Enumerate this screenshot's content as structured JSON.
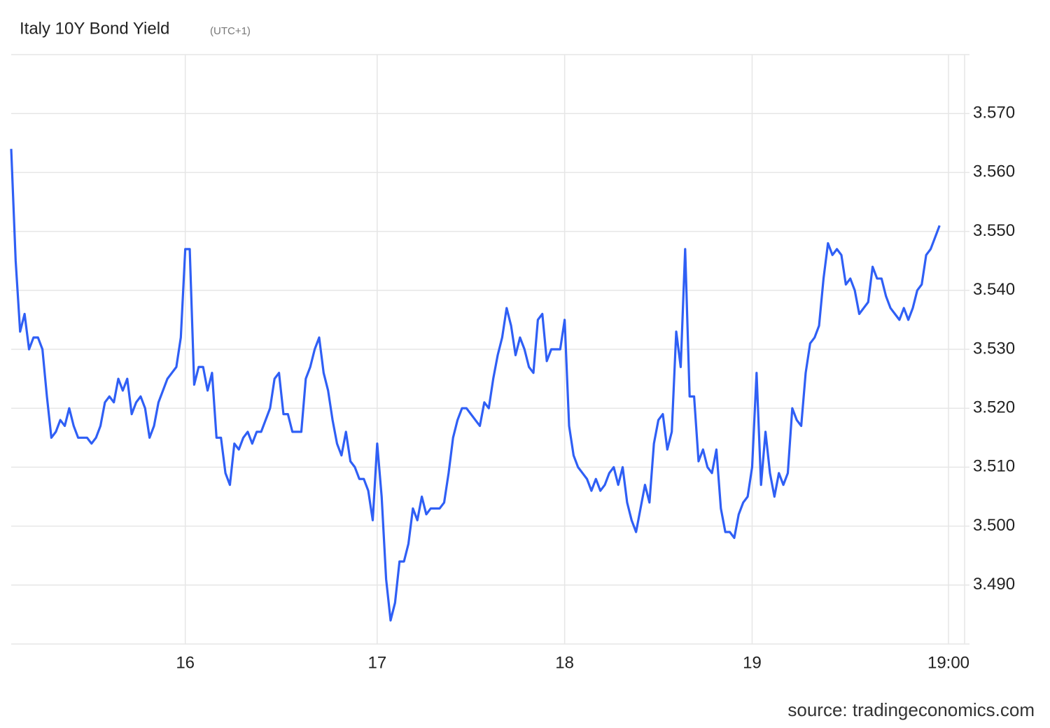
{
  "chart_data": {
    "type": "line",
    "title": "Italy 10Y Bond Yield",
    "subtitle": "(UTC+1)",
    "source": "source: tradingeconomics.com",
    "color": "#2f5ff5",
    "grid": true,
    "ylim": [
      3.48,
      3.58
    ],
    "yticks": [
      {
        "value": 3.49,
        "label": "3.490"
      },
      {
        "value": 3.5,
        "label": "3.500"
      },
      {
        "value": 3.51,
        "label": "3.510"
      },
      {
        "value": 3.52,
        "label": "3.520"
      },
      {
        "value": 3.53,
        "label": "3.530"
      },
      {
        "value": 3.54,
        "label": "3.540"
      },
      {
        "value": 3.55,
        "label": "3.550"
      },
      {
        "value": 3.56,
        "label": "3.560"
      },
      {
        "value": 3.57,
        "label": "3.570"
      }
    ],
    "categories": [
      null,
      null,
      null,
      null,
      null,
      null,
      null,
      null,
      null,
      null,
      null,
      null,
      null,
      null,
      null,
      null,
      null,
      null,
      null,
      null,
      null,
      null,
      null,
      null,
      null,
      null,
      null,
      null,
      null,
      null,
      null,
      null,
      null,
      null,
      null,
      null,
      null,
      null,
      null,
      "16",
      null,
      null,
      null,
      null,
      null,
      null,
      null,
      null,
      null,
      null,
      null,
      null,
      null,
      null,
      null,
      null,
      null,
      null,
      null,
      null,
      null,
      null,
      null,
      null,
      null,
      null,
      null,
      null,
      null,
      null,
      null,
      null,
      null,
      null,
      null,
      null,
      null,
      null,
      null,
      null,
      null,
      null,
      "17",
      null,
      null,
      null,
      null,
      null,
      null,
      null,
      null,
      null,
      null,
      null,
      null,
      null,
      null,
      null,
      null,
      null,
      null,
      null,
      null,
      null,
      null,
      null,
      null,
      null,
      null,
      null,
      null,
      null,
      null,
      null,
      null,
      null,
      null,
      null,
      null,
      null,
      null,
      null,
      null,
      null,
      "18",
      null,
      null,
      null,
      null,
      null,
      null,
      null,
      null,
      null,
      null,
      null,
      null,
      null,
      null,
      null,
      null,
      null,
      null,
      null,
      null,
      null,
      null,
      null,
      null,
      null,
      null,
      null,
      null,
      null,
      null,
      null,
      null,
      null,
      null,
      null,
      null,
      null,
      null,
      null,
      null,
      null,
      "19",
      null,
      null,
      null,
      null,
      null,
      null,
      null,
      null,
      null,
      null,
      null,
      null,
      null,
      null,
      null,
      null,
      null,
      null,
      null,
      null,
      null,
      null,
      null,
      null,
      null,
      null,
      null,
      null,
      null,
      null,
      null,
      null,
      null,
      null,
      null,
      null,
      null,
      null,
      null,
      null,
      null,
      null,
      null,
      "19:00"
    ],
    "values": [
      3.564,
      3.545,
      3.533,
      3.536,
      3.53,
      3.532,
      3.532,
      3.53,
      3.522,
      3.515,
      3.516,
      3.518,
      3.517,
      3.52,
      3.517,
      3.515,
      3.515,
      3.515,
      3.514,
      3.515,
      3.517,
      3.521,
      3.522,
      3.521,
      3.525,
      3.523,
      3.525,
      3.519,
      3.521,
      3.522,
      3.52,
      3.515,
      3.517,
      3.521,
      3.523,
      3.525,
      3.526,
      3.527,
      3.532,
      3.547,
      3.547,
      3.524,
      3.527,
      3.527,
      3.523,
      3.526,
      3.515,
      3.515,
      3.509,
      3.507,
      3.514,
      3.513,
      3.515,
      3.516,
      3.514,
      3.516,
      3.516,
      3.518,
      3.52,
      3.525,
      3.526,
      3.519,
      3.519,
      3.516,
      3.516,
      3.516,
      3.525,
      3.527,
      3.53,
      3.532,
      3.526,
      3.523,
      3.518,
      3.514,
      3.512,
      3.516,
      3.511,
      3.51,
      3.508,
      3.508,
      3.506,
      3.501,
      3.514,
      3.505,
      3.491,
      3.484,
      3.487,
      3.494,
      3.494,
      3.497,
      3.503,
      3.501,
      3.505,
      3.502,
      3.503,
      3.503,
      3.503,
      3.504,
      3.509,
      3.515,
      3.518,
      3.52,
      3.52,
      3.519,
      3.518,
      3.517,
      3.521,
      3.52,
      3.525,
      3.529,
      3.532,
      3.537,
      3.534,
      3.529,
      3.532,
      3.53,
      3.527,
      3.526,
      3.535,
      3.536,
      3.528,
      3.53,
      3.53,
      3.53,
      3.535,
      3.517,
      3.512,
      3.51,
      3.509,
      3.508,
      3.506,
      3.508,
      3.506,
      3.507,
      3.509,
      3.51,
      3.507,
      3.51,
      3.504,
      3.501,
      3.499,
      3.503,
      3.507,
      3.504,
      3.514,
      3.518,
      3.519,
      3.513,
      3.516,
      3.533,
      3.527,
      3.547,
      3.522,
      3.522,
      3.511,
      3.513,
      3.51,
      3.509,
      3.513,
      3.503,
      3.499,
      3.499,
      3.498,
      3.502,
      3.504,
      3.505,
      3.51,
      3.526,
      3.507,
      3.516,
      3.509,
      3.505,
      3.509,
      3.507,
      3.509,
      3.52,
      3.518,
      3.517,
      3.526,
      3.531,
      3.532,
      3.534,
      3.542,
      3.548,
      3.546,
      3.547,
      3.546,
      3.541,
      3.542,
      3.54,
      3.536,
      3.537,
      3.538,
      3.544,
      3.542,
      3.542,
      3.539,
      3.537,
      3.536,
      3.535,
      3.537,
      3.535,
      3.537,
      3.54,
      3.541,
      3.546,
      3.547,
      3.549,
      3.551,
      null,
      null
    ]
  }
}
